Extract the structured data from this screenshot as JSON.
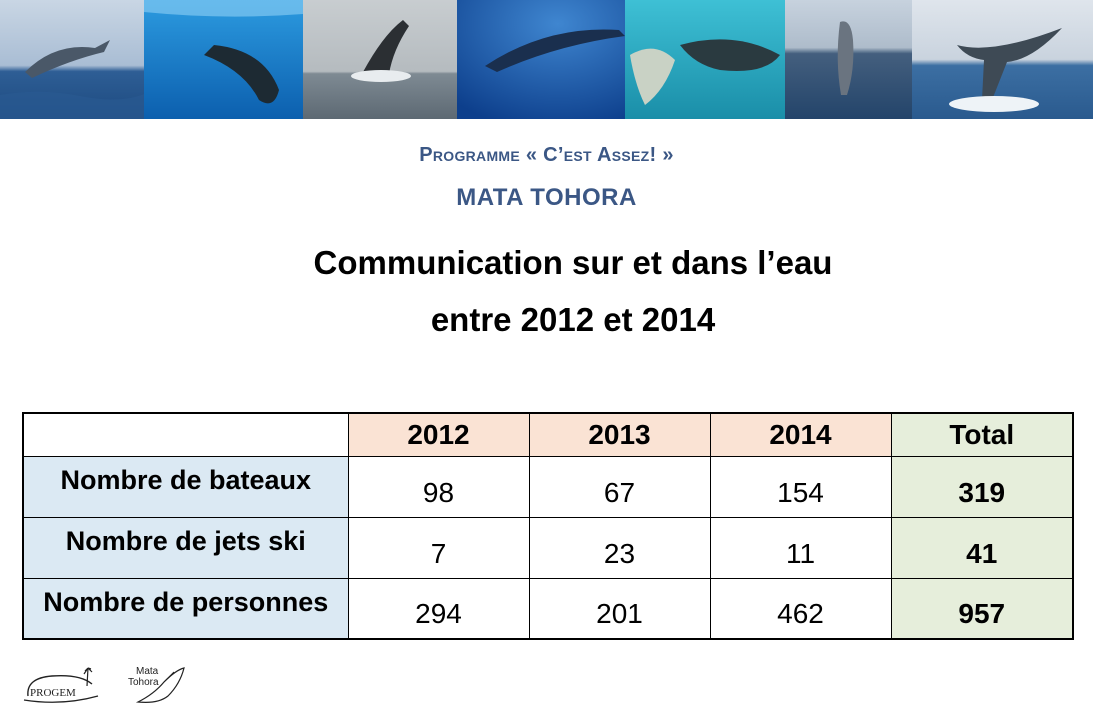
{
  "header": {
    "programme": "Programme  « C’est Assez! »",
    "organisation": "MATA TOHORA"
  },
  "title": {
    "line1": "Communication sur et dans l’eau",
    "line2": "entre 2012 et 2014"
  },
  "table": {
    "columns": [
      "2012",
      "2013",
      "2014",
      "Total"
    ],
    "rows": [
      {
        "label": "Nombre de bateaux",
        "values": [
          "98",
          "67",
          "154"
        ],
        "total": "319"
      },
      {
        "label": "Nombre de jets ski",
        "values": [
          "7",
          "23",
          "11"
        ],
        "total": "41"
      },
      {
        "label": "Nombre de personnes",
        "values": [
          "294",
          "201",
          "462"
        ],
        "total": "957"
      }
    ]
  },
  "logos": {
    "progem": "PROGEM",
    "mata_tohora_line1": "Mata",
    "mata_tohora_line2": "Tohora"
  },
  "colors": {
    "heading_blue": "#3b5785",
    "year_header_bg": "#fae3d4",
    "total_bg": "#e6eedb",
    "row_label_bg": "#dbe9f3"
  }
}
